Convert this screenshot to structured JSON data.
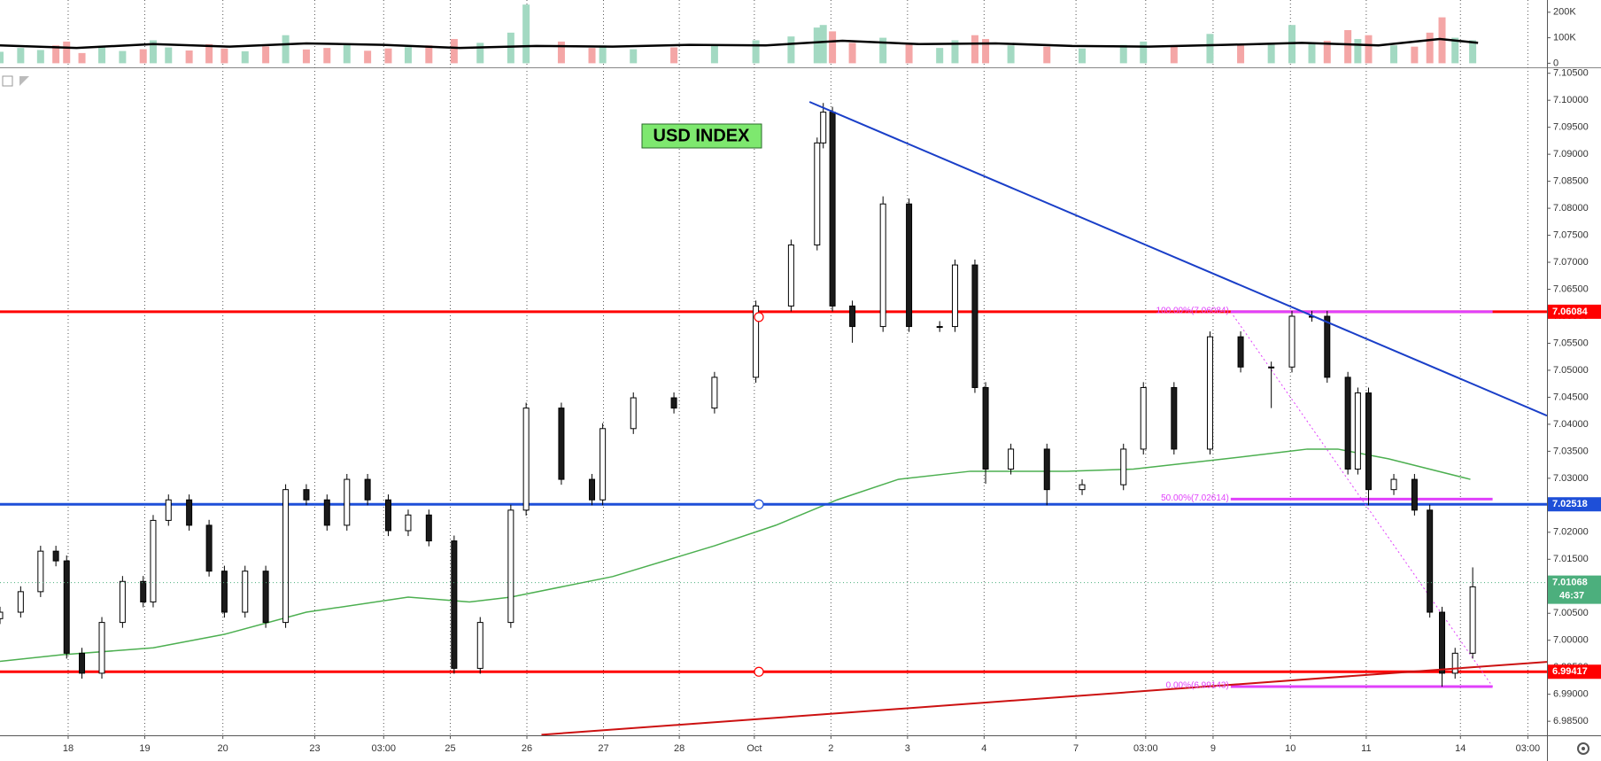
{
  "chart_data": {
    "type": "candlestick",
    "title": "USD INDEX",
    "up_color": "#ffffff",
    "down_color": "#1a1a1a",
    "x": [
      0,
      0.27,
      0.53,
      0.73,
      0.87,
      1.07,
      1.33,
      1.6,
      1.87,
      2,
      2.2,
      2.47,
      2.73,
      2.93,
      3.2,
      3.47,
      3.73,
      4,
      4.27,
      4.53,
      4.8,
      5.07,
      5.33,
      5.6,
      5.93,
      6.27,
      6.67,
      6.87,
      7.33,
      7.73,
      7.87,
      8.27,
      8.8,
      9.33,
      9.87,
      10.33,
      10.67,
      10.75,
      10.87,
      11.13,
      11.53,
      11.87,
      12.27,
      12.47,
      12.73,
      12.87,
      13.2,
      13.67,
      14.13,
      14.67,
      14.93,
      15.33,
      15.8,
      16.2,
      16.6,
      16.87,
      17.13,
      17.33,
      17.6,
      17.73,
      17.87,
      18.2,
      18.47,
      18.67,
      18.83,
      19,
      19.23
    ],
    "open": [
      7.004,
      7.0052,
      7.009,
      7.0165,
      7.0147,
      6.9976,
      6.9939,
      7.0033,
      7.0109,
      7.0071,
      7.0222,
      7.026,
      7.0213,
      7.0128,
      7.0052,
      7.0128,
      7.0033,
      7.0279,
      7.026,
      7.0213,
      7.0298,
      7.026,
      7.0203,
      7.0232,
      7.0184,
      6.9948,
      7.0033,
      7.0241,
      7.043,
      7.0298,
      7.026,
      7.0392,
      7.0449,
      7.043,
      7.0487,
      7.0619,
      7.0732,
      7.0921,
      7.0978,
      7.0619,
      7.0581,
      7.0808,
      7.0581,
      7.0581,
      7.0695,
      7.0468,
      7.0317,
      7.0354,
      7.0279,
      7.0288,
      7.0354,
      7.0468,
      7.0354,
      7.0562,
      7.0506,
      7.0506,
      7.06,
      7.06,
      7.0487,
      7.0317,
      7.0458,
      7.0279,
      7.0298,
      7.0241,
      7.0052,
      6.9939,
      6.9976
    ],
    "high": [
      7.0062,
      7.01,
      7.0175,
      7.0175,
      7.0157,
      6.9986,
      7.0043,
      7.0119,
      7.0119,
      7.0232,
      7.027,
      7.027,
      7.0223,
      7.0138,
      7.0138,
      7.0138,
      7.0289,
      7.0289,
      7.027,
      7.0308,
      7.0308,
      7.027,
      7.0242,
      7.0242,
      7.0194,
      7.0043,
      7.0251,
      7.044,
      7.044,
      7.0308,
      7.0402,
      7.0459,
      7.0459,
      7.0497,
      7.0629,
      7.0742,
      7.0931,
      7.0995,
      7.0988,
      7.0629,
      7.0822,
      7.0818,
      7.0591,
      7.0705,
      7.0705,
      7.0478,
      7.0364,
      7.0364,
      7.0298,
      7.0364,
      7.0478,
      7.0478,
      7.0572,
      7.0572,
      7.0516,
      7.061,
      7.061,
      7.061,
      7.0497,
      7.0468,
      7.0468,
      7.0308,
      7.0308,
      7.0251,
      7.0062,
      6.9986,
      7.0135
    ],
    "low": [
      7.003,
      7.0042,
      7.008,
      7.0137,
      6.9966,
      6.9929,
      6.9929,
      7.0023,
      7.0061,
      7.0061,
      7.0212,
      7.0203,
      7.0118,
      7.0042,
      7.0042,
      7.0023,
      7.0023,
      7.025,
      7.0203,
      7.0203,
      7.025,
      7.0193,
      7.0193,
      7.0174,
      6.9938,
      6.9938,
      7.0023,
      7.0231,
      7.0288,
      7.025,
      7.025,
      7.0382,
      7.042,
      7.042,
      7.0477,
      7.0609,
      7.0722,
      7.0911,
      7.0609,
      7.0551,
      7.0571,
      7.0571,
      7.0571,
      7.0571,
      7.0458,
      7.029,
      7.0307,
      7.025,
      7.0269,
      7.0278,
      7.0344,
      7.0344,
      7.0344,
      7.0496,
      7.043,
      7.0496,
      7.059,
      7.0477,
      7.0307,
      7.0307,
      7.025,
      7.0269,
      7.0231,
      7.0042,
      6.9914,
      6.9929,
      6.9966
    ],
    "close": [
      7.0052,
      7.009,
      7.0165,
      7.0147,
      6.9976,
      6.9939,
      7.0033,
      7.0109,
      7.0071,
      7.0222,
      7.026,
      7.0213,
      7.0128,
      7.0052,
      7.0128,
      7.0033,
      7.0279,
      7.026,
      7.0213,
      7.0298,
      7.026,
      7.0203,
      7.0232,
      7.0184,
      6.9948,
      7.0033,
      7.0241,
      7.043,
      7.0298,
      7.026,
      7.0392,
      7.0449,
      7.043,
      7.0487,
      7.0619,
      7.0732,
      7.0921,
      7.0978,
      7.0619,
      7.0581,
      7.0808,
      7.0581,
      7.0581,
      7.0695,
      7.0468,
      7.0317,
      7.0354,
      7.0279,
      7.0288,
      7.0354,
      7.0468,
      7.0354,
      7.0562,
      7.0506,
      7.0506,
      7.06,
      7.06,
      7.0487,
      7.0317,
      7.0458,
      7.0279,
      7.0298,
      7.0241,
      7.0052,
      6.9939,
      6.9976,
      7.0099
    ],
    "xlim": [
      0,
      20.2
    ],
    "xticks": [
      {
        "value": 0.89,
        "label": "18"
      },
      {
        "value": 1.89,
        "label": "19"
      },
      {
        "value": 2.91,
        "label": "20"
      },
      {
        "value": 4.11,
        "label": "23"
      },
      {
        "value": 5.01,
        "label": "03:00"
      },
      {
        "value": 5.88,
        "label": "25"
      },
      {
        "value": 6.88,
        "label": "26"
      },
      {
        "value": 7.88,
        "label": "27"
      },
      {
        "value": 8.87,
        "label": "28"
      },
      {
        "value": 9.85,
        "label": "Oct"
      },
      {
        "value": 10.85,
        "label": "2"
      },
      {
        "value": 11.85,
        "label": "3"
      },
      {
        "value": 12.85,
        "label": "4"
      },
      {
        "value": 14.05,
        "label": "7"
      },
      {
        "value": 14.96,
        "label": "03:00"
      },
      {
        "value": 15.84,
        "label": "9"
      },
      {
        "value": 16.85,
        "label": "10"
      },
      {
        "value": 17.84,
        "label": "11"
      },
      {
        "value": 19.07,
        "label": "14"
      },
      {
        "value": 19.95,
        "label": "03:00"
      }
    ],
    "ylim": [
      6.9824,
      7.1061
    ],
    "yticks": [
      {
        "value": 6.985,
        "label": "6.98500"
      },
      {
        "value": 6.99,
        "label": "6.99000"
      },
      {
        "value": 6.995,
        "label": "6.99500"
      },
      {
        "value": 7.0,
        "label": "7.00000"
      },
      {
        "value": 7.005,
        "label": "7.00500"
      },
      {
        "value": 7.01,
        "label": "7.01000"
      },
      {
        "value": 7.015,
        "label": "7.01500"
      },
      {
        "value": 7.02,
        "label": "7.02000"
      },
      {
        "value": 7.025,
        "label": "7.02500"
      },
      {
        "value": 7.03,
        "label": "7.03000"
      },
      {
        "value": 7.035,
        "label": "7.03500"
      },
      {
        "value": 7.04,
        "label": "7.04000"
      },
      {
        "value": 7.045,
        "label": "7.04500"
      },
      {
        "value": 7.05,
        "label": "7.05000"
      },
      {
        "value": 7.055,
        "label": "7.05500"
      },
      {
        "value": 7.06,
        "label": "7.06000"
      },
      {
        "value": 7.065,
        "label": "7.06500"
      },
      {
        "value": 7.07,
        "label": "7.07000"
      },
      {
        "value": 7.075,
        "label": "7.07500"
      },
      {
        "value": 7.08,
        "label": "7.08000"
      },
      {
        "value": 7.085,
        "label": "7.08500"
      },
      {
        "value": 7.09,
        "label": "7.09000"
      },
      {
        "value": 7.095,
        "label": "7.09500"
      },
      {
        "value": 7.1,
        "label": "7.10000"
      },
      {
        "value": 7.105,
        "label": "7.10500"
      }
    ],
    "moving_average": {
      "color": "#4caf50",
      "x": [
        0,
        0.8,
        2,
        2.93,
        4,
        5.33,
        6.13,
        6.67,
        8,
        9.33,
        10.13,
        10.93,
        11.73,
        12.67,
        13.93,
        14.8,
        16,
        17.07,
        17.47,
        18.13,
        19.2
      ],
      "values": [
        6.9961,
        6.9973,
        6.9986,
        7.0011,
        7.0052,
        7.008,
        7.0071,
        7.008,
        7.0118,
        7.0175,
        7.0213,
        7.026,
        7.0298,
        7.0313,
        7.0313,
        7.0317,
        7.0336,
        7.0354,
        7.0354,
        7.0336,
        7.0298
      ]
    },
    "levels": [
      {
        "value": 7.06084,
        "color": "#ff0000"
      },
      {
        "value": 7.02518,
        "color": "#1e4fd8"
      },
      {
        "value": 6.99417,
        "color": "#ff0000"
      }
    ],
    "last_price": {
      "value": 7.01068,
      "countdown": "46:37",
      "color": "#4caf7d"
    },
    "trendlines": [
      {
        "color": "#1a3fc8",
        "x": [
          10.57,
          20.2
        ],
        "values": [
          7.0997,
          7.0416
        ]
      },
      {
        "color": "#cc1111",
        "x": [
          7.07,
          20.2
        ],
        "values": [
          6.9825,
          6.996
        ]
      }
    ],
    "fibonacci": {
      "color": "#e040fb",
      "x": [
        16.07,
        19.49
      ],
      "levels": [
        {
          "value": 7.06084,
          "label": "100.00%(7.06084)"
        },
        {
          "value": 7.02614,
          "label": "50.00%(7.02614)"
        },
        {
          "value": 6.99143,
          "label": "0.00%(6.99143)"
        }
      ]
    },
    "volume": {
      "up_color": "#a3d9c2",
      "down_color": "#f4a6a6",
      "values": [
        45000,
        60000,
        52000,
        70000,
        85000,
        40000,
        65000,
        48000,
        55000,
        90000,
        62000,
        50000,
        75000,
        58000,
        47000,
        66000,
        110000,
        54000,
        60000,
        72000,
        49000,
        58000,
        63000,
        70000,
        95000,
        80000,
        120000,
        230000,
        85000,
        60000,
        70000,
        55000,
        62000,
        68000,
        90000,
        105000,
        140000,
        150000,
        125000,
        80000,
        100000,
        75000,
        60000,
        90000,
        110000,
        95000,
        70000,
        65000,
        58000,
        72000,
        85000,
        66000,
        115000,
        70000,
        80000,
        150000,
        75000,
        88000,
        130000,
        95000,
        110000,
        70000,
        65000,
        120000,
        180000,
        100000,
        90000
      ],
      "ylim": [
        -16000,
        248000
      ],
      "yticks": [
        0,
        {
          "value": 100000,
          "label": "100K"
        },
        {
          "value": 200000,
          "label": "200K"
        }
      ],
      "ma": {
        "color": "#000000",
        "x": [
          0,
          1,
          2,
          3,
          4,
          5,
          6,
          7,
          8,
          9,
          10,
          11,
          12,
          13,
          14,
          15,
          16,
          17,
          18,
          18.8,
          19.3
        ],
        "values": [
          70000,
          60000,
          75000,
          65000,
          78000,
          72000,
          60000,
          68000,
          65000,
          72000,
          70000,
          88000,
          75000,
          78000,
          68000,
          65000,
          72000,
          80000,
          70000,
          95000,
          80000
        ]
      }
    }
  }
}
